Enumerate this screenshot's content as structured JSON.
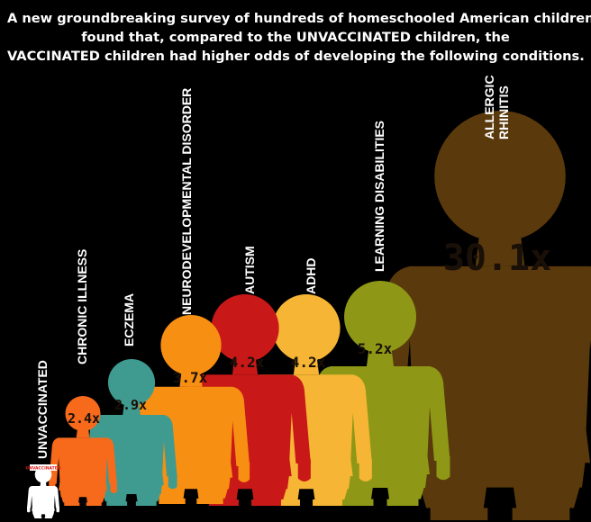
{
  "headline": {
    "line1": "A new groundbreaking survey of hundreds of homeschooled American children",
    "line2": "found that, compared to the UNVACCINATED children, the",
    "line3": "VACCINATED children had higher odds of developing the following conditions."
  },
  "chart_data": {
    "type": "bar",
    "style": "pictogram-children-scaled-by-value",
    "categories": [
      "UNVACCINATED",
      "CHRONIC ILLNESS",
      "ECZEMA",
      "NEURODEVELOPMENTAL DISORDER",
      "AUTISM",
      "ADHD",
      "LEARNING DISABILITIES",
      "ALLERGIC RHINITIS"
    ],
    "values": [
      1.0,
      2.4,
      2.9,
      3.7,
      4.2,
      4.2,
      5.2,
      30.1
    ],
    "value_labels": [
      "",
      "2.4x",
      "2.9x",
      "3.7x",
      "4.2x",
      "4.2x",
      "5.2x",
      "30.1x"
    ],
    "colors": [
      "#ffffff",
      "#f76a1b",
      "#3f9a8f",
      "#f78f12",
      "#c81818",
      "#f6b534",
      "#8e9816",
      "#5a3a0c"
    ],
    "baseline_badge": "UNVACCINATED",
    "badge_color": "#e0201c"
  }
}
